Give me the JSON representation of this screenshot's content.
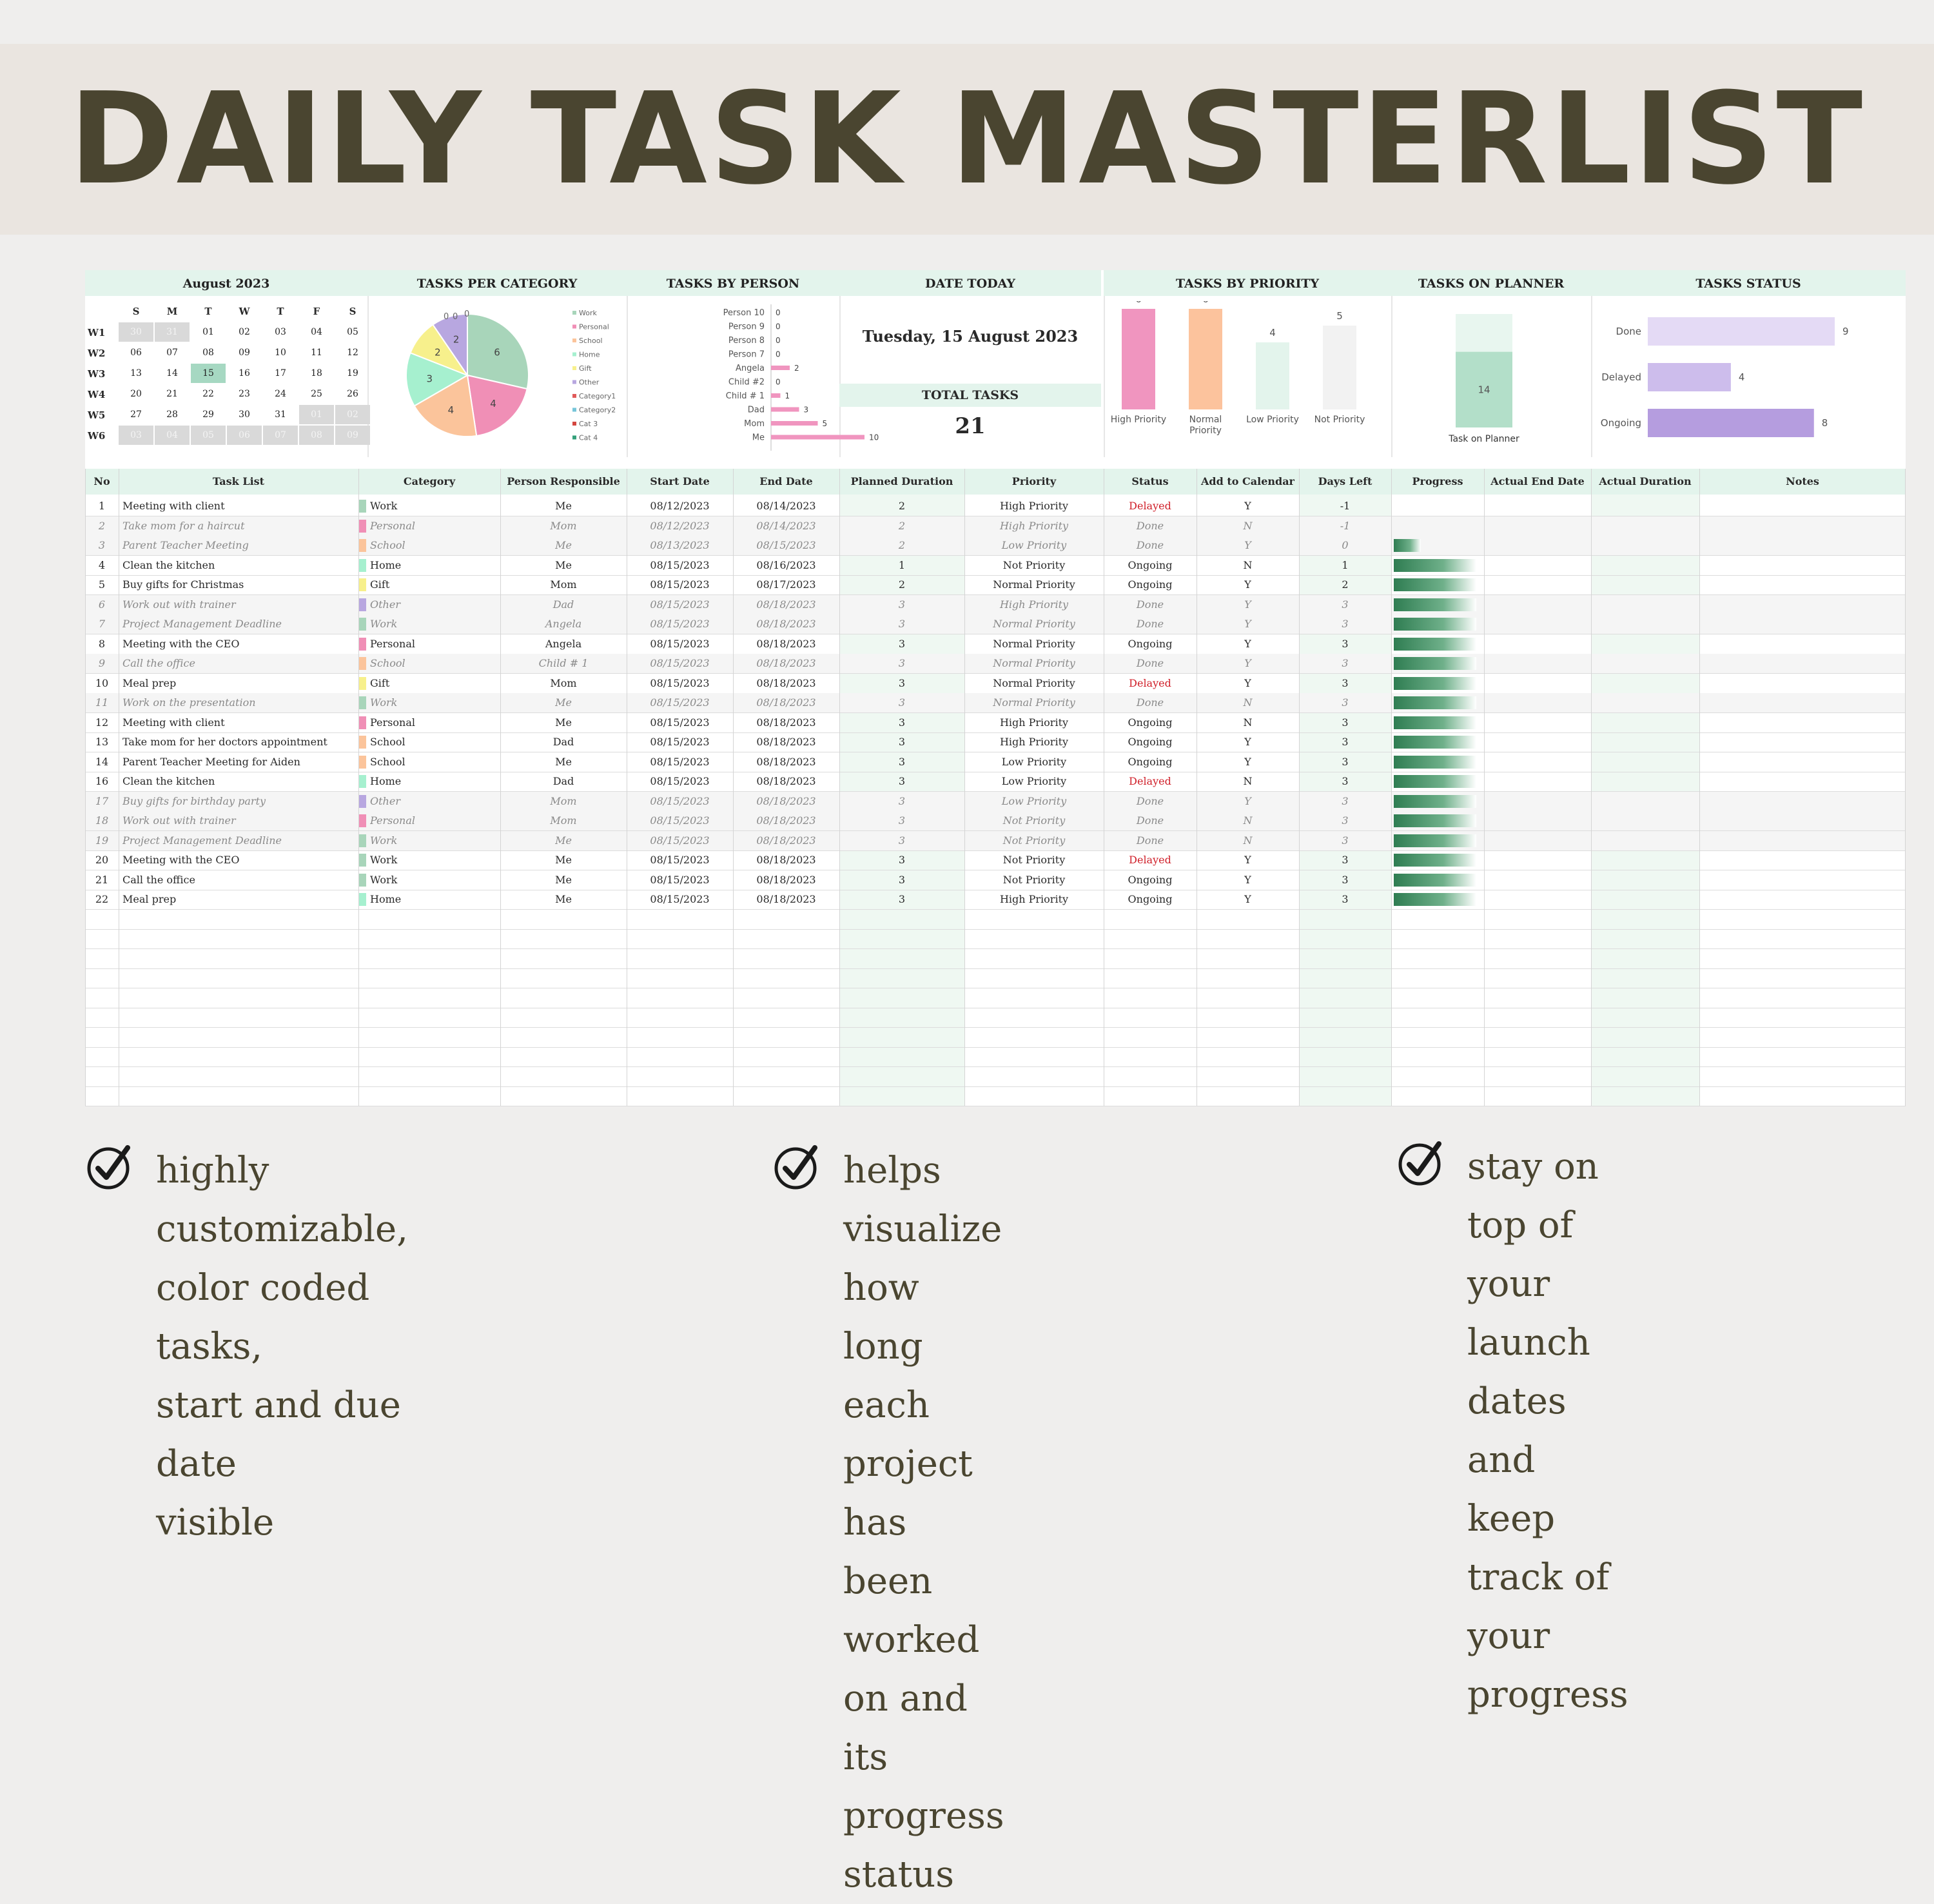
{
  "title": "DAILY TASK MASTERLIST",
  "dashboard": {
    "headers": [
      "August  2023",
      "TASKS PER CATEGORY",
      "TASKS BY PERSON",
      "DATE TODAY",
      "TASKS BY PRIORITY",
      "TASKS ON PLANNER",
      "TASKS STATUS"
    ],
    "date_today": "Tuesday, 15 August 2023",
    "total_tasks_label": "TOTAL TASKS",
    "total_tasks": "21"
  },
  "calendar": {
    "days_of_week": [
      "S",
      "M",
      "T",
      "W",
      "T",
      "F",
      "S"
    ],
    "weeks": [
      {
        "label": "W1",
        "days": [
          "30",
          "31",
          "01",
          "02",
          "03",
          "04",
          "05"
        ]
      },
      {
        "label": "W2",
        "days": [
          "06",
          "07",
          "08",
          "09",
          "10",
          "11",
          "12"
        ]
      },
      {
        "label": "W3",
        "days": [
          "13",
          "14",
          "15",
          "16",
          "17",
          "18",
          "19"
        ]
      },
      {
        "label": "W4",
        "days": [
          "20",
          "21",
          "22",
          "23",
          "24",
          "25",
          "26"
        ]
      },
      {
        "label": "W5",
        "days": [
          "27",
          "28",
          "29",
          "30",
          "31",
          "01",
          "02"
        ]
      },
      {
        "label": "W6",
        "days": [
          "03",
          "04",
          "05",
          "06",
          "07",
          "08",
          "09"
        ]
      }
    ],
    "today": "15"
  },
  "chart_data": [
    {
      "type": "pie",
      "title": "TASKS PER CATEGORY",
      "categories": [
        "Work",
        "Personal",
        "School",
        "Home",
        "Gift",
        "Other",
        "Category1",
        "Category2",
        "Cat 3",
        "Cat 4"
      ],
      "values": [
        6,
        4,
        4,
        3,
        2,
        2,
        0,
        0,
        0,
        0
      ],
      "legend": "right"
    },
    {
      "type": "bar",
      "orientation": "horizontal",
      "title": "TASKS BY PERSON",
      "categories": [
        "Person 10",
        "Person 9",
        "Person 8",
        "Person 7",
        "Angela",
        "Child #2",
        "Child # 1",
        "Dad",
        "Mom",
        "Me"
      ],
      "values": [
        0,
        0,
        0,
        0,
        2,
        0,
        1,
        3,
        5,
        10
      ]
    },
    {
      "type": "bar",
      "title": "TASKS BY PRIORITY",
      "categories": [
        "High Priority",
        "Normal Priority",
        "Low Priority",
        "Not Priority"
      ],
      "values": [
        6,
        6,
        4,
        5
      ]
    },
    {
      "type": "bar",
      "title": "TASKS ON PLANNER",
      "categories": [
        "Task on Planner"
      ],
      "values": [
        14
      ],
      "total": 21
    },
    {
      "type": "bar",
      "orientation": "horizontal",
      "title": "TASKS STATUS",
      "categories": [
        "Done",
        "Delayed",
        "Ongoing"
      ],
      "values": [
        9,
        4,
        8
      ]
    }
  ],
  "colors": {
    "Work": "#a8d5ba",
    "Personal": "#f08fb6",
    "School": "#fbc49b",
    "Home": "#a6f0cf",
    "Gift": "#f7f08c",
    "Other": "#b8a7e0",
    "Category1": "#e05a5a",
    "Category2": "#77c6d9",
    "Cat 3": "#d4463f",
    "Cat 4": "#34a07a",
    "priority_bars": [
      "#f095bf",
      "#fcc39d",
      "#e3f4ec",
      "#f2f2f2"
    ],
    "status_bars": [
      "#e4daf5",
      "#cdbdec",
      "#b59ddf"
    ],
    "person_bar": "#f095bf",
    "planner_fill": "#b3dfc9",
    "planner_bg": "#e8f6ef"
  },
  "table": {
    "headers": [
      "No",
      "Task List",
      "Category",
      "Person Responsible",
      "Start Date",
      "End Date",
      "Planned Duration",
      "Priority",
      "Status",
      "Add to Calendar",
      "Days Left",
      "Progress",
      "Actual End Date",
      "Actual Duration",
      "Notes"
    ],
    "rows": [
      {
        "no": "1",
        "task": "Meeting with client",
        "category": "Work",
        "person": "Me",
        "start": "08/12/2023",
        "end": "08/14/2023",
        "duration": "2",
        "priority": "High Priority",
        "status": "Delayed",
        "calendar": "Y",
        "days_left": "-1",
        "progress": 0
      },
      {
        "no": "2",
        "task": "Take mom for a haircut",
        "category": "Personal",
        "person": "Mom",
        "start": "08/12/2023",
        "end": "08/14/2023",
        "duration": "2",
        "priority": "High Priority",
        "status": "Done",
        "calendar": "N",
        "days_left": "-1",
        "progress": 0
      },
      {
        "no": "3",
        "task": "Parent Teacher Meeting",
        "category": "School",
        "person": "Me",
        "start": "08/13/2023",
        "end": "08/15/2023",
        "duration": "2",
        "priority": "Low Priority",
        "status": "Done",
        "calendar": "Y",
        "days_left": "0",
        "progress": 0.33
      },
      {
        "no": "4",
        "task": "Clean the kitchen",
        "category": "Home",
        "person": "Me",
        "start": "08/15/2023",
        "end": "08/16/2023",
        "duration": "1",
        "priority": "Not Priority",
        "status": "Ongoing",
        "calendar": "N",
        "days_left": "1",
        "progress": 1
      },
      {
        "no": "5",
        "task": "Buy gifts for Christmas",
        "category": "Gift",
        "person": "Mom",
        "start": "08/15/2023",
        "end": "08/17/2023",
        "duration": "2",
        "priority": "Normal Priority",
        "status": "Ongoing",
        "calendar": "Y",
        "days_left": "2",
        "progress": 1
      },
      {
        "no": "6",
        "task": "Work out with trainer",
        "category": "Other",
        "person": "Dad",
        "start": "08/15/2023",
        "end": "08/18/2023",
        "duration": "3",
        "priority": "High Priority",
        "status": "Done",
        "calendar": "Y",
        "days_left": "3",
        "progress": 1
      },
      {
        "no": "7",
        "task": "Project Management Deadline",
        "category": "Work",
        "person": "Angela",
        "start": "08/15/2023",
        "end": "08/18/2023",
        "duration": "3",
        "priority": "Normal Priority",
        "status": "Done",
        "calendar": "Y",
        "days_left": "3",
        "progress": 1
      },
      {
        "no": "8",
        "task": "Meeting with the CEO",
        "category": "Personal",
        "person": "Angela",
        "start": "08/15/2023",
        "end": "08/18/2023",
        "duration": "3",
        "priority": "Normal Priority",
        "status": "Ongoing",
        "calendar": "Y",
        "days_left": "3",
        "progress": 1
      },
      {
        "no": "9",
        "task": "Call the office",
        "category": "School",
        "person": "Child # 1",
        "start": "08/15/2023",
        "end": "08/18/2023",
        "duration": "3",
        "priority": "Normal Priority",
        "status": "Done",
        "calendar": "Y",
        "days_left": "3",
        "progress": 1
      },
      {
        "no": "10",
        "task": "Meal prep",
        "category": "Gift",
        "person": "Mom",
        "start": "08/15/2023",
        "end": "08/18/2023",
        "duration": "3",
        "priority": "Normal Priority",
        "status": "Delayed",
        "calendar": "Y",
        "days_left": "3",
        "progress": 1
      },
      {
        "no": "11",
        "task": "Work on the presentation",
        "category": "Work",
        "person": "Me",
        "start": "08/15/2023",
        "end": "08/18/2023",
        "duration": "3",
        "priority": "Normal Priority",
        "status": "Done",
        "calendar": "N",
        "days_left": "3",
        "progress": 1
      },
      {
        "no": "12",
        "task": "Meeting with client",
        "category": "Personal",
        "person": "Me",
        "start": "08/15/2023",
        "end": "08/18/2023",
        "duration": "3",
        "priority": "High Priority",
        "status": "Ongoing",
        "calendar": "N",
        "days_left": "3",
        "progress": 1
      },
      {
        "no": "13",
        "task": "Take mom for her doctors appointment",
        "category": "School",
        "person": "Dad",
        "start": "08/15/2023",
        "end": "08/18/2023",
        "duration": "3",
        "priority": "High Priority",
        "status": "Ongoing",
        "calendar": "Y",
        "days_left": "3",
        "progress": 1
      },
      {
        "no": "14",
        "task": "Parent Teacher Meeting for Aiden",
        "category": "School",
        "person": "Me",
        "start": "08/15/2023",
        "end": "08/18/2023",
        "duration": "3",
        "priority": "Low Priority",
        "status": "Ongoing",
        "calendar": "Y",
        "days_left": "3",
        "progress": 1
      },
      {
        "no": "16",
        "task": "Clean the kitchen",
        "category": "Home",
        "person": "Dad",
        "start": "08/15/2023",
        "end": "08/18/2023",
        "duration": "3",
        "priority": "Low Priority",
        "status": "Delayed",
        "calendar": "N",
        "days_left": "3",
        "progress": 1
      },
      {
        "no": "17",
        "task": "Buy gifts for birthday party",
        "category": "Other",
        "person": "Mom",
        "start": "08/15/2023",
        "end": "08/18/2023",
        "duration": "3",
        "priority": "Low Priority",
        "status": "Done",
        "calendar": "Y",
        "days_left": "3",
        "progress": 1
      },
      {
        "no": "18",
        "task": "Work out with trainer",
        "category": "Personal",
        "person": "Mom",
        "start": "08/15/2023",
        "end": "08/18/2023",
        "duration": "3",
        "priority": "Not Priority",
        "status": "Done",
        "calendar": "N",
        "days_left": "3",
        "progress": 1
      },
      {
        "no": "19",
        "task": "Project Management Deadline",
        "category": "Work",
        "person": "Me",
        "start": "08/15/2023",
        "end": "08/18/2023",
        "duration": "3",
        "priority": "Not Priority",
        "status": "Done",
        "calendar": "N",
        "days_left": "3",
        "progress": 1
      },
      {
        "no": "20",
        "task": "Meeting with the CEO",
        "category": "Work",
        "person": "Me",
        "start": "08/15/2023",
        "end": "08/18/2023",
        "duration": "3",
        "priority": "Not Priority",
        "status": "Delayed",
        "calendar": "Y",
        "days_left": "3",
        "progress": 1
      },
      {
        "no": "21",
        "task": "Call the office",
        "category": "Work",
        "person": "Me",
        "start": "08/15/2023",
        "end": "08/18/2023",
        "duration": "3",
        "priority": "Not Priority",
        "status": "Ongoing",
        "calendar": "Y",
        "days_left": "3",
        "progress": 1
      },
      {
        "no": "22",
        "task": "Meal prep",
        "category": "Home",
        "person": "Me",
        "start": "08/15/2023",
        "end": "08/18/2023",
        "duration": "3",
        "priority": "High Priority",
        "status": "Ongoing",
        "calendar": "Y",
        "days_left": "3",
        "progress": 1
      }
    ]
  },
  "features": [
    [
      "highly",
      "customizable,",
      "color coded tasks,",
      "start and due date",
      "visible"
    ],
    [
      "helps visualize",
      "how long each",
      "project has been",
      "worked on and its",
      "progress status"
    ],
    [
      "stay on top of your",
      "launch dates and keep",
      "track of your progress"
    ]
  ]
}
